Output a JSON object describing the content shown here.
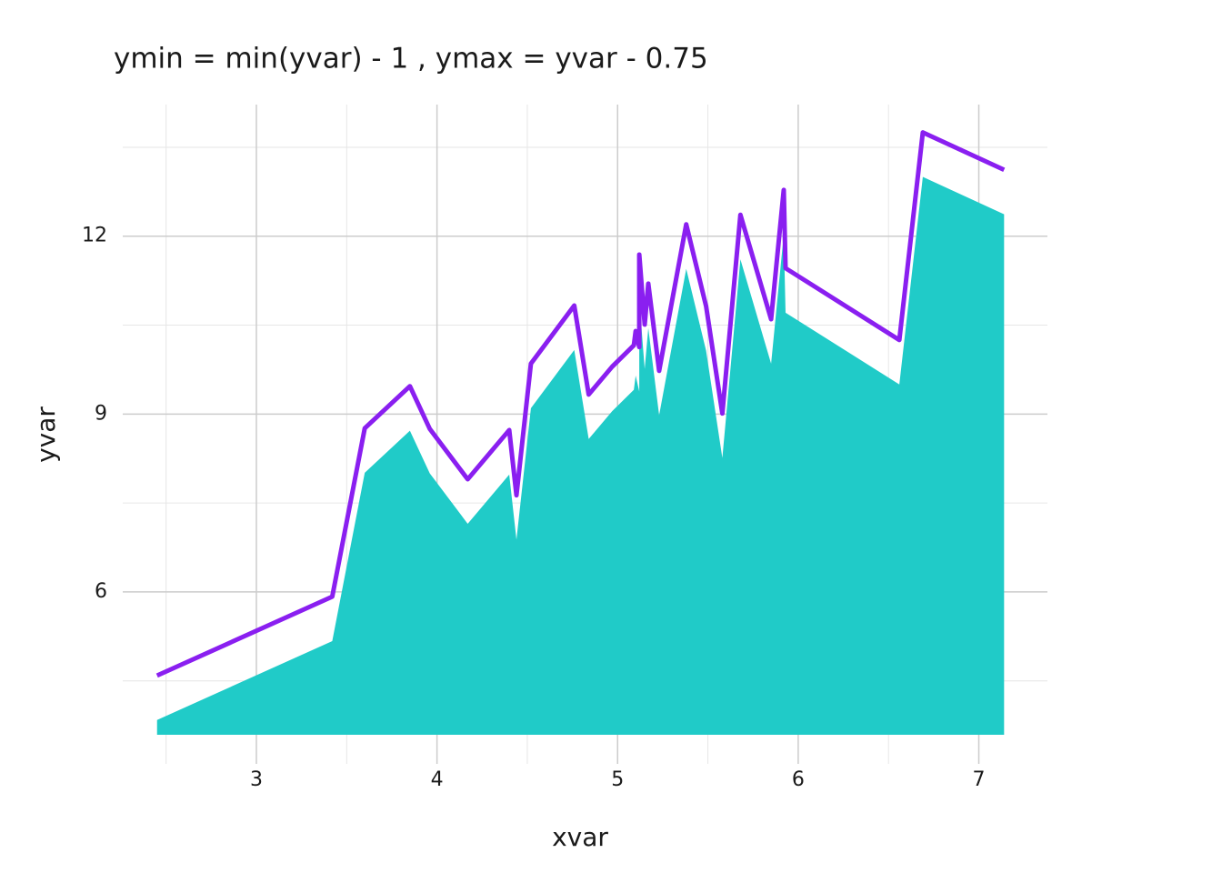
{
  "chart_data": {
    "type": "area",
    "title": "ymin = min(yvar) - 1 , ymax = yvar - 0.75",
    "xlabel": "xvar",
    "ylabel": "yvar",
    "x": [
      2.45,
      3.42,
      3.6,
      3.85,
      3.96,
      4.17,
      4.4,
      4.44,
      4.52,
      4.76,
      4.84,
      4.97,
      5.09,
      5.1,
      5.12,
      5.12,
      5.15,
      5.17,
      5.23,
      5.38,
      5.49,
      5.58,
      5.68,
      5.85,
      5.92,
      5.93,
      6.56,
      6.69,
      7.14
    ],
    "series": [
      {
        "kind": "ribbon",
        "color": "#20cbc8",
        "ymin": 3.59,
        "values": [
          3.84,
          5.17,
          8.01,
          8.72,
          8.0,
          7.15,
          7.98,
          6.88,
          9.1,
          10.08,
          8.58,
          9.05,
          9.41,
          9.65,
          9.38,
          10.94,
          9.76,
          10.45,
          8.98,
          11.45,
          10.07,
          8.26,
          11.61,
          9.85,
          12.03,
          10.71,
          9.5,
          13.0,
          12.37
        ]
      },
      {
        "kind": "line",
        "color": "#8a1ff0",
        "values": [
          4.59,
          5.92,
          8.76,
          9.47,
          8.75,
          7.9,
          8.73,
          7.63,
          9.85,
          10.83,
          9.33,
          9.8,
          10.16,
          10.4,
          10.13,
          11.69,
          10.51,
          11.2,
          9.73,
          12.2,
          10.82,
          9.01,
          12.36,
          10.6,
          12.78,
          11.46,
          10.25,
          13.75,
          13.12
        ]
      }
    ],
    "xlim": [
      2.26,
      7.38
    ],
    "ylim": [
      3.1,
      14.22
    ],
    "xticks": [
      3,
      4,
      5,
      6,
      7
    ],
    "yticks": [
      6,
      9,
      12
    ],
    "x_minor_grid": [
      2.5,
      3.5,
      4.5,
      5.5,
      6.5
    ],
    "y_minor_grid": [
      4.5,
      7.5,
      10.5,
      13.5
    ],
    "grid": true
  }
}
